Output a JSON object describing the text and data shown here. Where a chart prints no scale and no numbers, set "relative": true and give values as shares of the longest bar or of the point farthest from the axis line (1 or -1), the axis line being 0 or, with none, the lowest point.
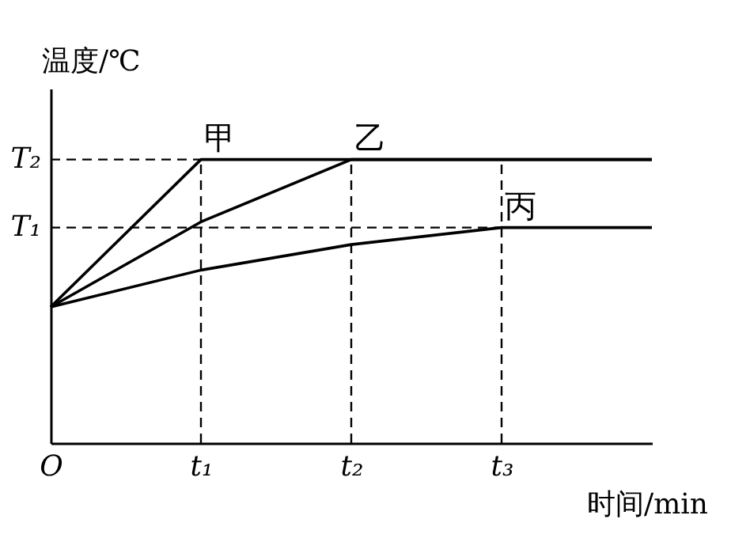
{
  "chart_data": {
    "type": "line",
    "relative": true,
    "xlabel": "时间/min",
    "ylabel": "温度/℃",
    "categories": [
      "O",
      "t₁",
      "t₂",
      "t₃",
      null
    ],
    "series": [
      {
        "name": "甲",
        "color": "#000000",
        "values": [
          0.48,
          1,
          1,
          1,
          1
        ]
      },
      {
        "name": "乙",
        "color": "#000000",
        "values": [
          0.48,
          0.78,
          1,
          1,
          1
        ]
      },
      {
        "name": "丙",
        "color": "#000000",
        "values": [
          0.48,
          0.61,
          0.7,
          0.76,
          0.76
        ]
      }
    ],
    "ref_lines": [
      {
        "axis": "y",
        "value": 1,
        "label": "T₂",
        "line_style": "dashed"
      },
      {
        "axis": "y",
        "value": 0.76,
        "label": "T₁",
        "line_style": "dashed"
      },
      {
        "axis": "x",
        "value": "t₁",
        "line_style": "dashed"
      },
      {
        "axis": "x",
        "value": "t₂",
        "line_style": "dashed"
      },
      {
        "axis": "x",
        "value": "t₃",
        "line_style": "dashed"
      }
    ],
    "marker": "none",
    "line_style": "solid"
  }
}
